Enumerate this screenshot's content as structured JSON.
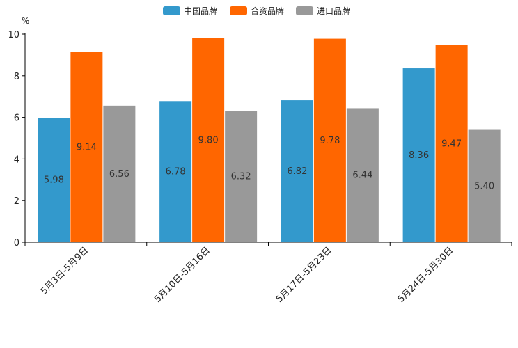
{
  "chart_data": {
    "type": "bar",
    "title": "",
    "xlabel": "",
    "ylabel": "%",
    "ylim": [
      0,
      10
    ],
    "yticks": [
      0,
      2,
      4,
      6,
      8,
      10
    ],
    "categories": [
      "5月3日-5月9日",
      "5月10日-5月16日",
      "5月17日-5月23日",
      "5月24日-5月30日"
    ],
    "series": [
      {
        "name": "中国品牌",
        "color": "#3399cc",
        "values": [
          5.98,
          6.78,
          6.82,
          8.36
        ],
        "labels": [
          "5.98",
          "6.78",
          "6.82",
          "8.36"
        ]
      },
      {
        "name": "合资品牌",
        "color": "#ff6600",
        "values": [
          9.14,
          9.8,
          9.78,
          9.47
        ],
        "labels": [
          "9.14",
          "9.80",
          "9.78",
          "9.47"
        ]
      },
      {
        "name": "进口品牌",
        "color": "#999999",
        "values": [
          6.56,
          6.32,
          6.44,
          5.4
        ],
        "labels": [
          "6.56",
          "6.32",
          "6.44",
          "5.40"
        ]
      }
    ],
    "legend_position": "top-center",
    "grid": false
  }
}
